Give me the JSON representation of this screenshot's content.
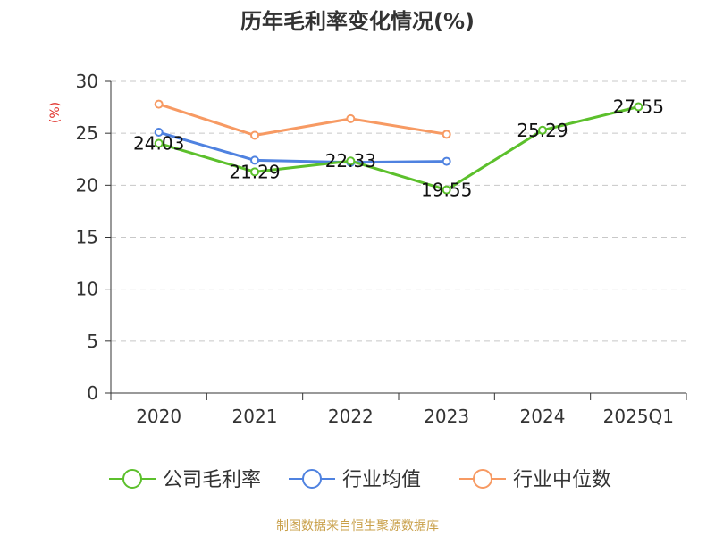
{
  "chart_data": {
    "type": "line",
    "title": "历年毛利率变化情况(%)",
    "ylabel": "(%)",
    "xlabel": "",
    "categories": [
      "2020",
      "2021",
      "2022",
      "2023",
      "2024",
      "2025Q1"
    ],
    "ylim": [
      0,
      30
    ],
    "yticks": [
      0,
      5,
      10,
      15,
      20,
      25,
      30
    ],
    "grid": true,
    "legend_position": "bottom",
    "series": [
      {
        "name": "公司毛利率",
        "color": "#5cc02c",
        "values": [
          24.03,
          21.29,
          22.33,
          19.55,
          25.29,
          27.55
        ],
        "data_labels": [
          "24.03",
          "21.29",
          "22.33",
          "19.55",
          "25.29",
          "27.55"
        ]
      },
      {
        "name": "行业均值",
        "color": "#4f82e0",
        "values": [
          25.1,
          22.4,
          22.2,
          22.3,
          null,
          null
        ]
      },
      {
        "name": "行业中位数",
        "color": "#f79a63",
        "values": [
          27.8,
          24.8,
          26.4,
          24.9,
          null,
          null
        ]
      }
    ]
  },
  "source_note": "制图数据来自恒生聚源数据库",
  "colors": {
    "title": "#333333",
    "ylabel": "#e0312a",
    "axis": "#333333",
    "grid": "#c8c8c8",
    "source": "#c9a04a"
  }
}
